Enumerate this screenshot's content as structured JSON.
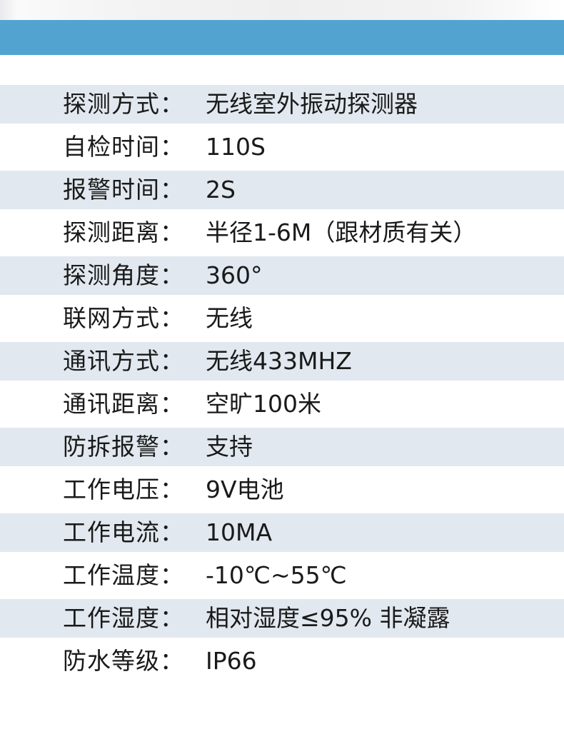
{
  "specs": [
    {
      "label": "探测方式：",
      "value": "无线室外振动探测器"
    },
    {
      "label": "自检时间：",
      "value": "110S"
    },
    {
      "label": "报警时间：",
      "value": "2S"
    },
    {
      "label": "探测距离：",
      "value": "半径1-6M（跟材质有关）"
    },
    {
      "label": "探测角度：",
      "value": "360°"
    },
    {
      "label": "联网方式：",
      "value": "无线"
    },
    {
      "label": "通讯方式：",
      "value": "无线433MHZ"
    },
    {
      "label": "通讯距离：",
      "value": "空旷100米"
    },
    {
      "label": "防拆报警：",
      "value": "支持"
    },
    {
      "label": "工作电压：",
      "value": "9V电池"
    },
    {
      "label": "工作电流：",
      "value": "10MA"
    },
    {
      "label": "工作温度：",
      "value": "-10℃~55℃"
    },
    {
      "label": "工作湿度：",
      "value": "相对湿度≤95% 非凝露"
    },
    {
      "label": "防水等级：",
      "value": "IP66"
    }
  ],
  "colors": {
    "header_bar": "#52a3d0",
    "row_shade": "#e1e8ef",
    "text": "#1a1a1a"
  }
}
